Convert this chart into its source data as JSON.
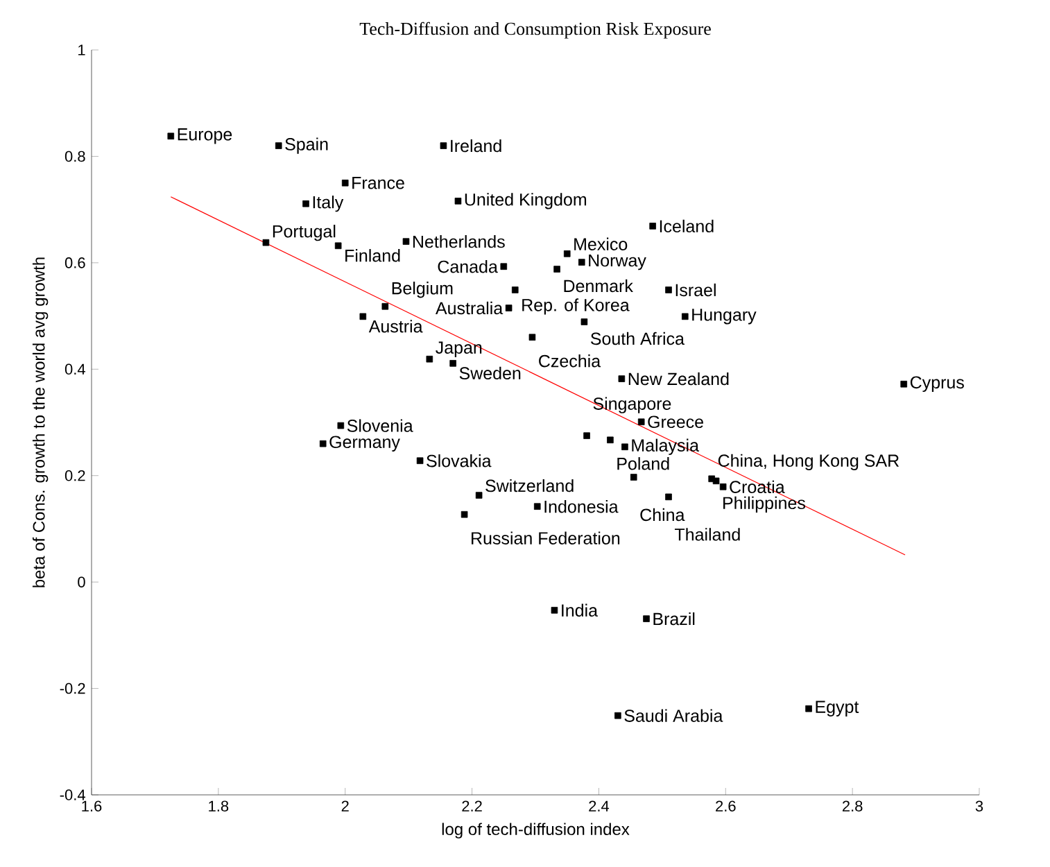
{
  "chart_data": {
    "type": "scatter",
    "title": "Tech-Diffusion and Consumption Risk Exposure",
    "xlabel": "log of tech-diffusion index",
    "ylabel": "beta of Cons. growth to the world avg growth",
    "xlim": [
      1.6,
      3
    ],
    "ylim": [
      -0.4,
      1
    ],
    "xticks": [
      1.6,
      1.8,
      2,
      2.2,
      2.4,
      2.6,
      2.8,
      3
    ],
    "yticks": [
      -0.4,
      -0.2,
      0,
      0.2,
      0.4,
      0.6,
      0.8,
      1
    ],
    "grid": false,
    "marker": "square",
    "series": [
      {
        "type": "scatter",
        "color": "#000000",
        "x": [
          1.725,
          1.895,
          2.155,
          2.0,
          1.938,
          2.178,
          2.485,
          1.875,
          1.989,
          2.096,
          2.35,
          2.373,
          2.334,
          2.25,
          2.268,
          2.51,
          2.258,
          2.536,
          2.377,
          2.295,
          2.063,
          2.028,
          2.133,
          2.17,
          2.436,
          2.881,
          2.467,
          2.381,
          2.418,
          2.441,
          1.993,
          1.965,
          2.118,
          2.455,
          2.578,
          2.585,
          2.596,
          2.51,
          2.211,
          2.303,
          2.188,
          2.33,
          2.475,
          2.43,
          2.731
        ],
        "values": [
          0.838,
          0.82,
          0.82,
          0.75,
          0.711,
          0.716,
          0.669,
          0.638,
          0.632,
          0.64,
          0.617,
          0.601,
          0.588,
          0.593,
          0.549,
          0.549,
          0.515,
          0.499,
          0.489,
          0.46,
          0.518,
          0.499,
          0.419,
          0.411,
          0.382,
          0.372,
          0.301,
          0.275,
          0.267,
          0.254,
          0.294,
          0.26,
          0.228,
          0.197,
          0.194,
          0.19,
          0.179,
          0.16,
          0.163,
          0.142,
          0.127,
          -0.053,
          -0.069,
          -0.251,
          -0.238
        ]
      },
      {
        "type": "line",
        "marker": "none",
        "color": "#ff0000",
        "x": [
          1.725,
          2.883
        ],
        "values": [
          0.724,
          0.051
        ]
      }
    ],
    "annotations": [
      {
        "text": "Europe",
        "x": 1.725,
        "y": 0.838
      },
      {
        "text": "Spain",
        "x": 1.895,
        "y": 0.82
      },
      {
        "text": "Ireland",
        "x": 2.155,
        "y": 0.82
      },
      {
        "text": "France",
        "x": 2.0,
        "y": 0.75
      },
      {
        "text": "Italy",
        "x": 1.938,
        "y": 0.711
      },
      {
        "text": "United Kingdom",
        "x": 2.178,
        "y": 0.716
      },
      {
        "text": "Iceland",
        "x": 2.485,
        "y": 0.669
      },
      {
        "text": "Portugal",
        "x": 1.875,
        "y": 0.638
      },
      {
        "text": "Finland",
        "x": 1.989,
        "y": 0.632
      },
      {
        "text": "Netherlands",
        "x": 2.096,
        "y": 0.64
      },
      {
        "text": "Mexico",
        "x": 2.35,
        "y": 0.617
      },
      {
        "text": "Norway",
        "x": 2.373,
        "y": 0.601
      },
      {
        "text": "Denmark",
        "x": 2.334,
        "y": 0.588
      },
      {
        "text": "Canada",
        "x": 2.25,
        "y": 0.593
      },
      {
        "text": "Rep. of Korea",
        "x": 2.268,
        "y": 0.549
      },
      {
        "text": "Israel",
        "x": 2.51,
        "y": 0.549
      },
      {
        "text": "Australia",
        "x": 2.258,
        "y": 0.515
      },
      {
        "text": "Hungary",
        "x": 2.536,
        "y": 0.499
      },
      {
        "text": "South Africa",
        "x": 2.377,
        "y": 0.489
      },
      {
        "text": "Czechia",
        "x": 2.295,
        "y": 0.46
      },
      {
        "text": "Belgium",
        "x": 2.063,
        "y": 0.518
      },
      {
        "text": "Austria",
        "x": 2.028,
        "y": 0.499
      },
      {
        "text": "Japan",
        "x": 2.133,
        "y": 0.419
      },
      {
        "text": "Sweden",
        "x": 2.17,
        "y": 0.411
      },
      {
        "text": "New Zealand",
        "x": 2.436,
        "y": 0.382
      },
      {
        "text": "Cyprus",
        "x": 2.881,
        "y": 0.372
      },
      {
        "text": "Greece",
        "x": 2.467,
        "y": 0.301
      },
      {
        "text": "Singapore",
        "x": 2.381,
        "y": 0.275
      },
      {
        "text": "Poland",
        "x": 2.418,
        "y": 0.267
      },
      {
        "text": "Malaysia",
        "x": 2.441,
        "y": 0.254
      },
      {
        "text": "Slovenia",
        "x": 1.993,
        "y": 0.294
      },
      {
        "text": "Germany",
        "x": 1.965,
        "y": 0.26
      },
      {
        "text": "Slovakia",
        "x": 2.118,
        "y": 0.228
      },
      {
        "text": "China",
        "x": 2.455,
        "y": 0.197
      },
      {
        "text": "China, Hong Kong SAR",
        "x": 2.578,
        "y": 0.194
      },
      {
        "text": "Philippines",
        "x": 2.585,
        "y": 0.19
      },
      {
        "text": "Croatia",
        "x": 2.596,
        "y": 0.179
      },
      {
        "text": "Thailand",
        "x": 2.51,
        "y": 0.16
      },
      {
        "text": "Switzerland",
        "x": 2.211,
        "y": 0.163
      },
      {
        "text": "Indonesia",
        "x": 2.303,
        "y": 0.142
      },
      {
        "text": "Russian Federation",
        "x": 2.188,
        "y": 0.127
      },
      {
        "text": "India",
        "x": 2.33,
        "y": -0.053
      },
      {
        "text": "Brazil",
        "x": 2.475,
        "y": -0.069
      },
      {
        "text": "Saudi Arabia",
        "x": 2.43,
        "y": -0.251
      },
      {
        "text": "Egypt",
        "x": 2.731,
        "y": -0.238
      }
    ]
  }
}
